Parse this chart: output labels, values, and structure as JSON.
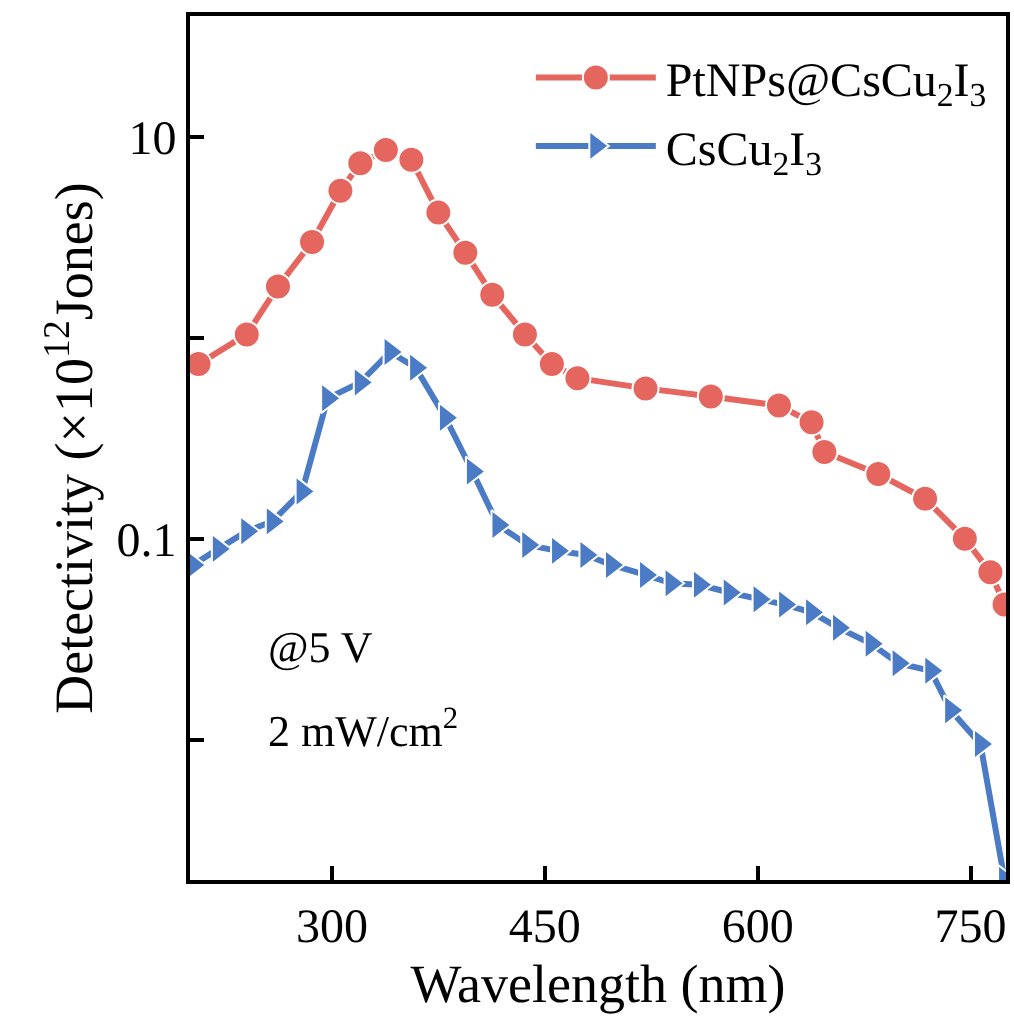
{
  "chart_data": {
    "type": "line",
    "xlabel": "Wavelength (nm)",
    "ylabel": "Detectivity (×10$^{12}$Jones)",
    "log": "y",
    "xlim": [
      200,
      775
    ],
    "xticks": [
      300,
      450,
      600,
      750
    ],
    "ylim": [
      0.002,
      40
    ],
    "yticks": [
      {
        "value": 0.01,
        "label": null
      },
      0.1,
      {
        "value": 1,
        "label": null
      },
      10
    ],
    "legend": "top right",
    "line_style": "solid",
    "annotations": [
      "@5 V",
      "2 mW/cm$^{2}$"
    ],
    "series": [
      {
        "name": "PtNPs@CsCu$_{2}$I$_{3}$",
        "color": "#e5665e",
        "marker": "circle",
        "x": [
          206,
          240,
          262,
          286,
          306,
          320,
          338,
          356,
          375,
          394,
          413,
          436,
          455,
          473,
          521,
          567,
          615,
          638,
          647,
          685,
          718,
          746,
          764,
          774
        ],
        "values": [
          0.74,
          1.04,
          1.8,
          3.0,
          5.4,
          7.4,
          8.6,
          7.7,
          4.2,
          2.65,
          1.64,
          1.04,
          0.74,
          0.63,
          0.56,
          0.51,
          0.46,
          0.38,
          0.27,
          0.21,
          0.158,
          0.1,
          0.068,
          0.047
        ]
      },
      {
        "name": "CsCu$_{2}$I$_{3}$",
        "color": "#4a7bc4",
        "marker": "triangle",
        "x": [
          202,
          220,
          240,
          258,
          279,
          297,
          320,
          341,
          359,
          380,
          399,
          417,
          438,
          459,
          479,
          497,
          521,
          539,
          559,
          580,
          601,
          619,
          638,
          657,
          680,
          699,
          722,
          736,
          757,
          774
        ],
        "values": [
          0.074,
          0.089,
          0.109,
          0.122,
          0.172,
          0.5,
          0.6,
          0.85,
          0.71,
          0.4,
          0.216,
          0.117,
          0.093,
          0.087,
          0.083,
          0.074,
          0.066,
          0.06,
          0.059,
          0.054,
          0.05,
          0.047,
          0.043,
          0.036,
          0.03,
          0.024,
          0.022,
          0.014,
          0.0095,
          0.002
        ]
      }
    ]
  }
}
